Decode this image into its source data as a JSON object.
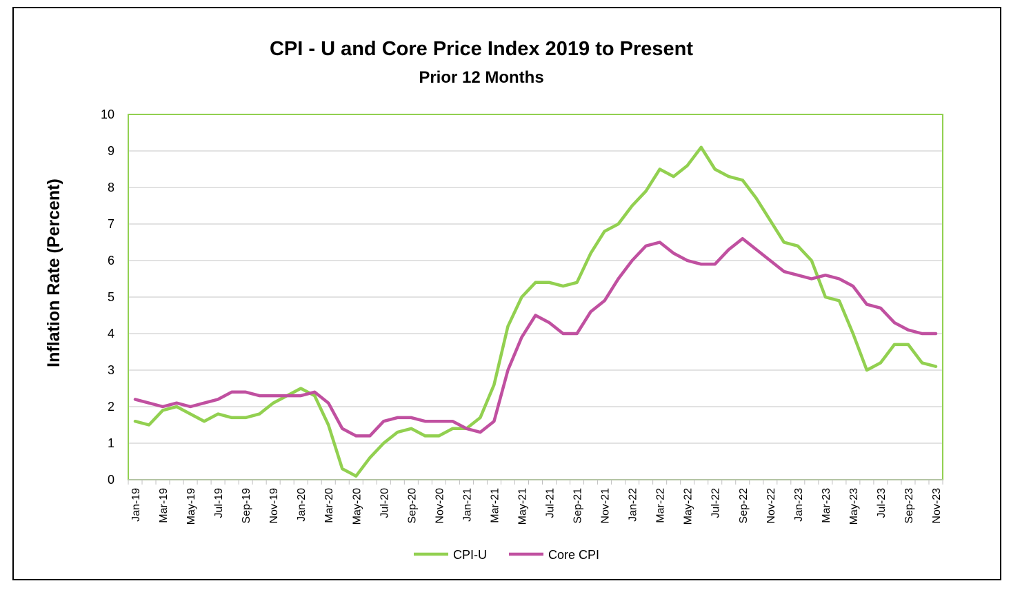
{
  "chart_data": {
    "type": "line",
    "title": "CPI - U and Core Price Index 2019 to Present",
    "subtitle": "Prior 12 Months",
    "ylabel": "Inflation Rate (Percent)",
    "xlabel": "",
    "ylim": [
      0,
      10
    ],
    "yticks": [
      "0",
      "1",
      "2",
      "3",
      "4",
      "5",
      "6",
      "7",
      "8",
      "9",
      "10"
    ],
    "grid": true,
    "legend_position": "bottom",
    "x": [
      "Jan-19",
      "Feb-19",
      "Mar-19",
      "Apr-19",
      "May-19",
      "Jun-19",
      "Jul-19",
      "Aug-19",
      "Sep-19",
      "Oct-19",
      "Nov-19",
      "Dec-19",
      "Jan-20",
      "Feb-20",
      "Mar-20",
      "Apr-20",
      "May-20",
      "Jun-20",
      "Jul-20",
      "Aug-20",
      "Sep-20",
      "Oct-20",
      "Nov-20",
      "Dec-20",
      "Jan-21",
      "Feb-21",
      "Mar-21",
      "Apr-21",
      "May-21",
      "Jun-21",
      "Jul-21",
      "Aug-21",
      "Sep-21",
      "Oct-21",
      "Nov-21",
      "Dec-21",
      "Jan-22",
      "Feb-22",
      "Mar-22",
      "Apr-22",
      "May-22",
      "Jun-22",
      "Jul-22",
      "Aug-22",
      "Sep-22",
      "Oct-22",
      "Nov-22",
      "Dec-22",
      "Jan-23",
      "Feb-23",
      "Mar-23",
      "Apr-23",
      "May-23",
      "Jun-23",
      "Jul-23",
      "Aug-23",
      "Sep-23",
      "Oct-23",
      "Nov-23"
    ],
    "xtick_labels": [
      "Jan-19",
      "Mar-19",
      "May-19",
      "Jul-19",
      "Sep-19",
      "Nov-19",
      "Jan-20",
      "Mar-20",
      "May-20",
      "Jul-20",
      "Sep-20",
      "Nov-20",
      "Jan-21",
      "Mar-21",
      "May-21",
      "Jul-21",
      "Sep-21",
      "Nov-21",
      "Jan-22",
      "Mar-22",
      "May-22",
      "Jul-22",
      "Sep-22",
      "Nov-22",
      "Jan-23",
      "Mar-23",
      "May-23",
      "Jul-23",
      "Sep-23",
      "Nov-23"
    ],
    "series": [
      {
        "name": "CPI-U",
        "color": "#92d050",
        "values": [
          1.6,
          1.5,
          1.9,
          2.0,
          1.8,
          1.6,
          1.8,
          1.7,
          1.7,
          1.8,
          2.1,
          2.3,
          2.5,
          2.3,
          1.5,
          0.3,
          0.1,
          0.6,
          1.0,
          1.3,
          1.4,
          1.2,
          1.2,
          1.4,
          1.4,
          1.7,
          2.6,
          4.2,
          5.0,
          5.4,
          5.4,
          5.3,
          5.4,
          6.2,
          6.8,
          7.0,
          7.5,
          7.9,
          8.5,
          8.3,
          8.6,
          9.1,
          8.5,
          8.3,
          8.2,
          7.7,
          7.1,
          6.5,
          6.4,
          6.0,
          5.0,
          4.9,
          4.0,
          3.0,
          3.2,
          3.7,
          3.7,
          3.2,
          3.1
        ]
      },
      {
        "name": "Core CPI",
        "color": "#c050a0",
        "values": [
          2.2,
          2.1,
          2.0,
          2.1,
          2.0,
          2.1,
          2.2,
          2.4,
          2.4,
          2.3,
          2.3,
          2.3,
          2.3,
          2.4,
          2.1,
          1.4,
          1.2,
          1.2,
          1.6,
          1.7,
          1.7,
          1.6,
          1.6,
          1.6,
          1.4,
          1.3,
          1.6,
          3.0,
          3.9,
          4.5,
          4.3,
          4.0,
          4.0,
          4.6,
          4.9,
          5.5,
          6.0,
          6.4,
          6.5,
          6.2,
          6.0,
          5.9,
          5.9,
          6.3,
          6.6,
          6.3,
          6.0,
          5.7,
          5.6,
          5.5,
          5.6,
          5.5,
          5.3,
          4.8,
          4.7,
          4.3,
          4.1,
          4.0,
          4.0
        ]
      }
    ],
    "colors": {
      "grid": "#d9d9d9",
      "plot_border": "#92d050",
      "axis": "#bfbfbf"
    }
  }
}
